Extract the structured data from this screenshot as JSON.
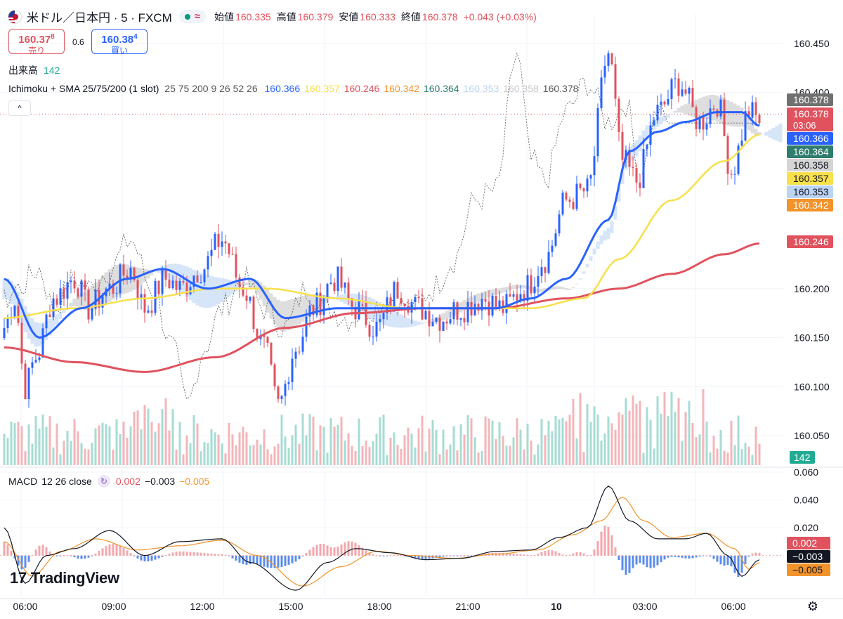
{
  "header": {
    "symbol_name": "米ドル／日本円 · 5 · FXCM",
    "ohlc": [
      {
        "label": "始値",
        "value": "160.335"
      },
      {
        "label": "高値",
        "value": "160.379"
      },
      {
        "label": "安値",
        "value": "160.333"
      },
      {
        "label": "終値",
        "value": "160.378"
      }
    ],
    "change": "+0.043 (+0.03%)",
    "icons": {
      "flag": "usd-jpy-flag-icon",
      "status": "market-open-dot-icon",
      "wave": "delayed-data-wave-icon"
    }
  },
  "quote": {
    "sell_price_main": "160.37",
    "sell_price_sup": "8",
    "sell_label": "売り",
    "spread": "0.6",
    "buy_price_main": "160.38",
    "buy_price_sup": "4",
    "buy_label": "買い"
  },
  "volume_legend": {
    "label": "出来高",
    "value": "142"
  },
  "indicator_legend": {
    "name": "Ichimoku + SMA 25/75/200 (1 slot)",
    "params": "25 75 200 9 26 52 26",
    "values": [
      {
        "value": "160.366",
        "color": "#2962ff"
      },
      {
        "value": "160.357",
        "color": "#f7e04a"
      },
      {
        "value": "160.246",
        "color": "#e0525e"
      },
      {
        "value": "160.342",
        "color": "#f2932b"
      },
      {
        "value": "160.364",
        "color": "#2e7d6d"
      },
      {
        "value": "160.353",
        "color": "#bcd4f5"
      },
      {
        "value": "160.358",
        "color": "#c8c8c8"
      },
      {
        "value": "160.378",
        "color": "#555555"
      }
    ],
    "collapse_glyph": "^"
  },
  "macd_legend": {
    "label": "MACD",
    "params": "12 26 close",
    "values": [
      {
        "value": "0.002",
        "color": "#e0525e"
      },
      {
        "value": "−0.003",
        "color": "#131722"
      },
      {
        "value": "−0.005",
        "color": "#f2932b"
      }
    ]
  },
  "branding": {
    "logo_text": "TradingView"
  },
  "colors": {
    "up": "#22ab94",
    "down": "#e0525e",
    "sma25": "#2962ff",
    "sma75": "#f7e04a",
    "sma200": "#e0525e",
    "cloud_bull": "#bcd4f5",
    "cloud_bear": "#c8c8c8",
    "macd": "#131722",
    "signal": "#f2932b"
  },
  "chart_data": {
    "type": "candlestick",
    "symbol": "USDJPY",
    "interval_minutes": 5,
    "price_axis": {
      "ylim": [
        160.02,
        160.48
      ],
      "ticks": [
        "160.450",
        "160.400",
        "160.200",
        "160.150",
        "160.100",
        "160.050"
      ]
    },
    "macd_axis": {
      "ylim": [
        -0.03,
        0.06
      ],
      "ticks": [
        "0.060",
        "0.040",
        "0.020"
      ]
    },
    "time_axis": {
      "labels": [
        "06:00",
        "09:00",
        "12:00",
        "15:00",
        "18:00",
        "21:00",
        "10",
        "03:00",
        "06:00"
      ]
    },
    "current_price": 160.378,
    "countdown": "03:06",
    "price_badges": [
      {
        "value": "160.378",
        "price": 160.378,
        "color": "#707070",
        "label": "high-line-badge"
      },
      {
        "value": "160.378",
        "sub": "03:06",
        "price": 160.378,
        "color": "#e0525e",
        "label": "last-price-badge"
      },
      {
        "value": "160.366",
        "price": 160.366,
        "color": "#2962ff",
        "label": "sma25-badge"
      },
      {
        "value": "160.364",
        "price": 160.364,
        "color": "#2e7d6d",
        "label": "tenkan-badge"
      },
      {
        "value": "160.358",
        "price": 160.358,
        "color": "#d4d4d4",
        "label": "senkou-b-badge"
      },
      {
        "value": "160.357",
        "price": 160.357,
        "color": "#f7e04a",
        "label": "sma75-badge"
      },
      {
        "value": "160.353",
        "price": 160.353,
        "color": "#bcd4f5",
        "label": "senkou-a-badge"
      },
      {
        "value": "160.342",
        "price": 160.342,
        "color": "#f2932b",
        "label": "kijun-badge"
      },
      {
        "value": "160.246",
        "price": 160.246,
        "color": "#e0525e",
        "label": "sma200-badge"
      }
    ],
    "volume_badge": "142",
    "macd_badges": [
      {
        "value": "0.002",
        "color": "#e0525e"
      },
      {
        "value": "−0.003",
        "color": "#131722"
      },
      {
        "value": "−0.005",
        "color": "#f2932b"
      }
    ],
    "series_close_anchors": [
      [
        0,
        160.16
      ],
      [
        3,
        160.19
      ],
      [
        6,
        160.1
      ],
      [
        9,
        160.13
      ],
      [
        14,
        160.19
      ],
      [
        20,
        160.21
      ],
      [
        24,
        160.18
      ],
      [
        30,
        160.2
      ],
      [
        36,
        160.22
      ],
      [
        40,
        160.18
      ],
      [
        46,
        160.21
      ],
      [
        50,
        160.2
      ],
      [
        56,
        160.22
      ],
      [
        62,
        160.25
      ],
      [
        68,
        160.2
      ],
      [
        74,
        160.14
      ],
      [
        78,
        160.08
      ],
      [
        83,
        160.14
      ],
      [
        88,
        160.18
      ],
      [
        94,
        160.21
      ],
      [
        100,
        160.18
      ],
      [
        106,
        160.16
      ],
      [
        112,
        160.2
      ],
      [
        118,
        160.18
      ],
      [
        124,
        160.17
      ],
      [
        130,
        160.18
      ],
      [
        136,
        160.19
      ],
      [
        142,
        160.18
      ],
      [
        148,
        160.2
      ],
      [
        154,
        160.23
      ],
      [
        160,
        160.29
      ],
      [
        166,
        160.3
      ],
      [
        172,
        160.44
      ],
      [
        176,
        160.33
      ],
      [
        180,
        160.31
      ],
      [
        186,
        160.38
      ],
      [
        192,
        160.41
      ],
      [
        198,
        160.37
      ],
      [
        203,
        160.39
      ],
      [
        207,
        160.32
      ],
      [
        212,
        160.38
      ],
      [
        215,
        160.372
      ]
    ],
    "sma25_anchors": [
      [
        0,
        160.21
      ],
      [
        10,
        160.15
      ],
      [
        22,
        160.18
      ],
      [
        35,
        160.21
      ],
      [
        45,
        160.22
      ],
      [
        58,
        160.2
      ],
      [
        70,
        160.21
      ],
      [
        80,
        160.17
      ],
      [
        95,
        160.18
      ],
      [
        110,
        160.18
      ],
      [
        125,
        160.18
      ],
      [
        140,
        160.18
      ],
      [
        150,
        160.19
      ],
      [
        160,
        160.21
      ],
      [
        172,
        160.27
      ],
      [
        178,
        160.34
      ],
      [
        186,
        160.36
      ],
      [
        194,
        160.37
      ],
      [
        203,
        160.38
      ],
      [
        210,
        160.38
      ],
      [
        215,
        160.366
      ]
    ],
    "sma75_anchors": [
      [
        0,
        160.17
      ],
      [
        20,
        160.18
      ],
      [
        40,
        160.19
      ],
      [
        60,
        160.2
      ],
      [
        75,
        160.2
      ],
      [
        95,
        160.19
      ],
      [
        115,
        160.18
      ],
      [
        135,
        160.18
      ],
      [
        150,
        160.18
      ],
      [
        165,
        160.19
      ],
      [
        175,
        160.23
      ],
      [
        190,
        160.29
      ],
      [
        205,
        160.33
      ],
      [
        215,
        160.357
      ]
    ],
    "sma200_anchors": [
      [
        0,
        160.14
      ],
      [
        20,
        160.125
      ],
      [
        40,
        160.115
      ],
      [
        60,
        160.13
      ],
      [
        80,
        160.16
      ],
      [
        100,
        160.175
      ],
      [
        120,
        160.18
      ],
      [
        140,
        160.18
      ],
      [
        160,
        160.19
      ],
      [
        175,
        160.2
      ],
      [
        190,
        160.215
      ],
      [
        205,
        160.235
      ],
      [
        215,
        160.246
      ]
    ],
    "macd_anchors": [
      [
        0,
        0.02
      ],
      [
        6,
        -0.02
      ],
      [
        12,
        0.0
      ],
      [
        20,
        0.005
      ],
      [
        30,
        0.018
      ],
      [
        40,
        0.0
      ],
      [
        50,
        0.01
      ],
      [
        62,
        0.012
      ],
      [
        70,
        -0.005
      ],
      [
        83,
        -0.025
      ],
      [
        92,
        -0.005
      ],
      [
        100,
        0.005
      ],
      [
        110,
        0.002
      ],
      [
        120,
        -0.003
      ],
      [
        130,
        -0.002
      ],
      [
        140,
        0.003
      ],
      [
        150,
        0.004
      ],
      [
        158,
        0.013
      ],
      [
        166,
        0.02
      ],
      [
        172,
        0.05
      ],
      [
        178,
        0.025
      ],
      [
        186,
        0.012
      ],
      [
        194,
        0.012
      ],
      [
        200,
        0.016
      ],
      [
        206,
        0.0
      ],
      [
        210,
        -0.015
      ],
      [
        215,
        -0.003
      ]
    ],
    "signal_anchors": [
      [
        0,
        0.01
      ],
      [
        8,
        -0.015
      ],
      [
        16,
        0.003
      ],
      [
        26,
        0.012
      ],
      [
        38,
        0.004
      ],
      [
        50,
        0.007
      ],
      [
        62,
        0.011
      ],
      [
        72,
        0.0
      ],
      [
        85,
        -0.022
      ],
      [
        96,
        -0.008
      ],
      [
        106,
        0.003
      ],
      [
        116,
        0.0
      ],
      [
        128,
        -0.002
      ],
      [
        140,
        0.001
      ],
      [
        152,
        0.004
      ],
      [
        162,
        0.015
      ],
      [
        170,
        0.025
      ],
      [
        176,
        0.042
      ],
      [
        182,
        0.025
      ],
      [
        190,
        0.013
      ],
      [
        200,
        0.016
      ],
      [
        208,
        0.005
      ],
      [
        212,
        -0.01
      ],
      [
        215,
        -0.005
      ]
    ]
  }
}
